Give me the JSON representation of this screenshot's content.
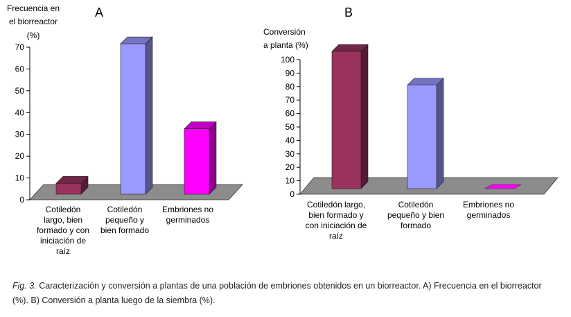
{
  "chart_data": [
    {
      "type": "bar",
      "panel_label": "A",
      "ylabel": [
        "Frecuencia en",
        "el biorreactor",
        "(%)"
      ],
      "ylim": [
        0,
        70
      ],
      "yticks": [
        0,
        10,
        20,
        30,
        40,
        50,
        60,
        70
      ],
      "categories": [
        [
          "Cotiledón",
          "largo, bien",
          "formado y con",
          "iniciación de",
          "raíz"
        ],
        [
          "Cotiledón",
          "pequeño y",
          "bien formado"
        ],
        [
          "Embriones no",
          "germinados"
        ]
      ],
      "values": [
        5,
        69,
        30
      ],
      "colors": [
        "#99335e",
        "#9999ff",
        "#ff00ff"
      ]
    },
    {
      "type": "bar",
      "panel_label": "B",
      "ylabel": [
        "Conversión",
        "a planta (%)"
      ],
      "ylim": [
        0,
        100
      ],
      "yticks": [
        0,
        10,
        20,
        30,
        40,
        50,
        60,
        70,
        80,
        90,
        100
      ],
      "categories": [
        [
          "Cotiledón largo,",
          "bien formado y",
          "con iniciación de",
          "raíz"
        ],
        [
          "Cotiledón",
          "pequeño y bien",
          "formado"
        ],
        [
          "Embriones no",
          "germinados"
        ]
      ],
      "values": [
        102,
        77,
        0
      ],
      "colors": [
        "#99335e",
        "#9999ff",
        "#ff00ff"
      ]
    }
  ],
  "caption": {
    "label": "Fig. 3.",
    "text": "Caracterización y conversión a plantas de una población de embriones obtenidos en un biorreactor. A) Frecuencia en el biorreactor (%). B) Conversión a planta luego de la siembra (%)."
  }
}
